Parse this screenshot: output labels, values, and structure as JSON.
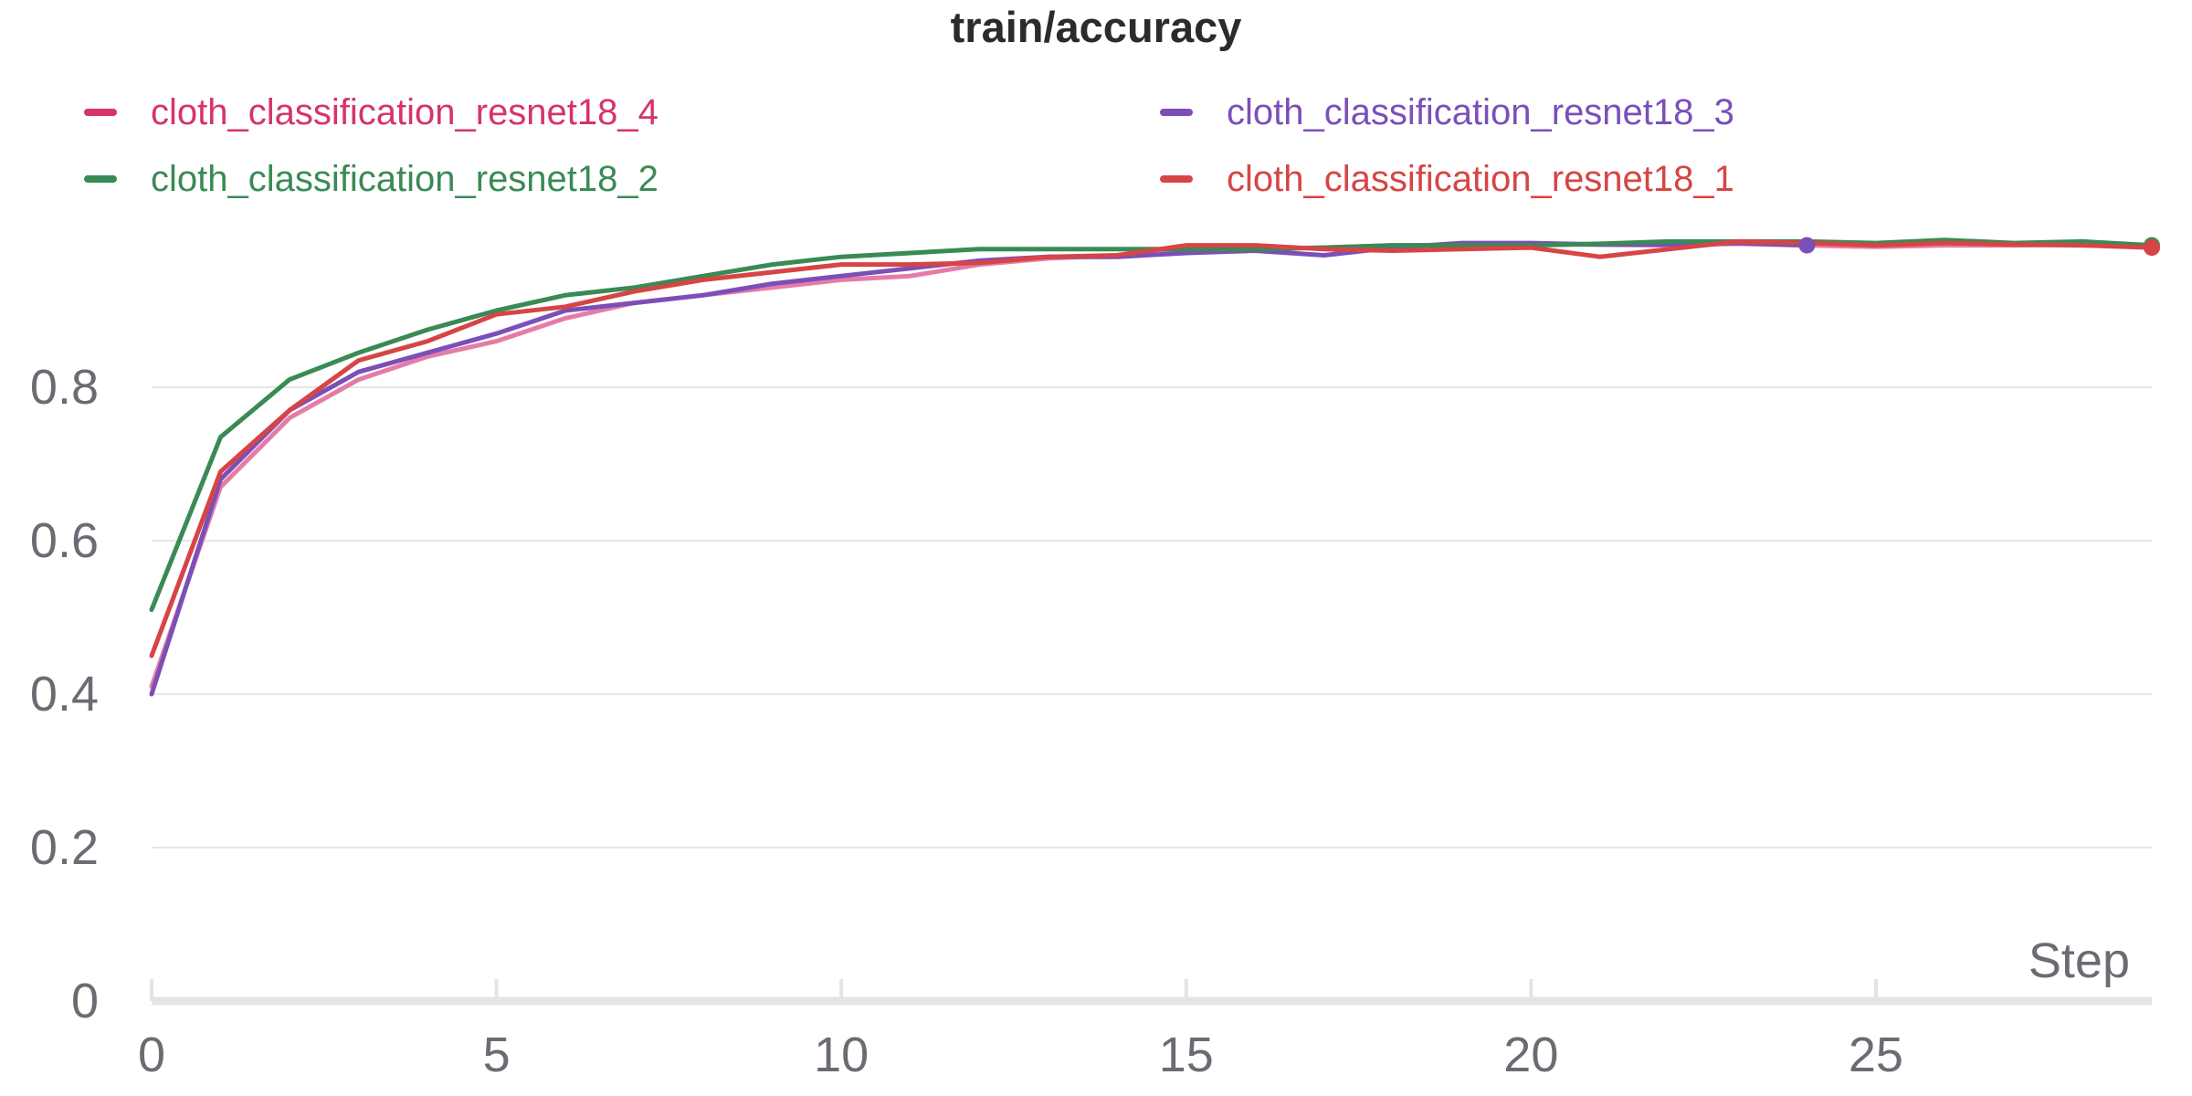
{
  "chart_data": {
    "type": "line",
    "title": "train/accuracy",
    "xlabel": "Step",
    "ylabel": "",
    "xlim": [
      0,
      29
    ],
    "ylim": [
      0,
      1
    ],
    "x_ticks": [
      "0",
      "5",
      "10",
      "15",
      "20",
      "25"
    ],
    "y_ticks": [
      "0",
      "0.2",
      "0.4",
      "0.6",
      "0.8"
    ],
    "grid": true,
    "legend_position": "top",
    "series": [
      {
        "name": "cloth_classification_resnet18_4",
        "color": "#d6336c",
        "line_color": "#e57ca8",
        "x": [
          0,
          1,
          2,
          3,
          4,
          5,
          6,
          7,
          8,
          9,
          10,
          11,
          12,
          13,
          14,
          15,
          16,
          17,
          18,
          19,
          20,
          21,
          22,
          23,
          24,
          25,
          26,
          27,
          28,
          29
        ],
        "y": [
          0.41,
          0.67,
          0.76,
          0.81,
          0.84,
          0.86,
          0.89,
          0.91,
          0.92,
          0.93,
          0.94,
          0.945,
          0.96,
          0.968,
          0.972,
          0.976,
          0.98,
          0.982,
          0.985,
          0.985,
          0.986,
          0.986,
          0.985,
          0.987,
          0.985,
          0.983,
          0.985,
          0.985,
          0.986,
          0.983
        ]
      },
      {
        "name": "cloth_classification_resnet18_3",
        "color": "#7b4fb8",
        "line_color": "#7b4fb8",
        "end_marker": true,
        "x": [
          0,
          1,
          2,
          3,
          4,
          5,
          6,
          7,
          8,
          9,
          10,
          11,
          12,
          13,
          14,
          15,
          16,
          17,
          18,
          19,
          20,
          21,
          22,
          23,
          24
        ],
        "y": [
          0.4,
          0.68,
          0.77,
          0.82,
          0.845,
          0.87,
          0.9,
          0.91,
          0.92,
          0.935,
          0.945,
          0.955,
          0.965,
          0.97,
          0.97,
          0.975,
          0.978,
          0.972,
          0.982,
          0.988,
          0.988,
          0.986,
          0.986,
          0.988,
          0.985
        ]
      },
      {
        "name": "cloth_classification_resnet18_2",
        "color": "#3a8a55",
        "line_color": "#3a8a55",
        "end_marker": true,
        "x": [
          0,
          1,
          2,
          3,
          4,
          5,
          6,
          7,
          8,
          9,
          10,
          11,
          12,
          13,
          14,
          15,
          16,
          17,
          18,
          19,
          20,
          21,
          22,
          23,
          24,
          25,
          26,
          27,
          28,
          29
        ],
        "y": [
          0.51,
          0.735,
          0.81,
          0.845,
          0.875,
          0.9,
          0.92,
          0.93,
          0.945,
          0.96,
          0.97,
          0.975,
          0.98,
          0.98,
          0.98,
          0.98,
          0.98,
          0.982,
          0.985,
          0.985,
          0.985,
          0.987,
          0.99,
          0.99,
          0.99,
          0.988,
          0.992,
          0.988,
          0.99,
          0.985
        ]
      },
      {
        "name": "cloth_classification_resnet18_1",
        "color": "#d64545",
        "line_color": "#d64545",
        "end_marker": true,
        "x": [
          0,
          1,
          2,
          3,
          4,
          5,
          6,
          7,
          8,
          9,
          10,
          11,
          12,
          13,
          14,
          15,
          16,
          17,
          18,
          19,
          20,
          21,
          22,
          23,
          24,
          25,
          26,
          27,
          28,
          29
        ],
        "y": [
          0.45,
          0.69,
          0.77,
          0.835,
          0.86,
          0.895,
          0.905,
          0.925,
          0.94,
          0.95,
          0.96,
          0.96,
          0.962,
          0.97,
          0.972,
          0.985,
          0.985,
          0.98,
          0.978,
          0.98,
          0.982,
          0.97,
          0.98,
          0.99,
          0.988,
          0.985,
          0.988,
          0.986,
          0.985,
          0.982
        ]
      }
    ]
  }
}
